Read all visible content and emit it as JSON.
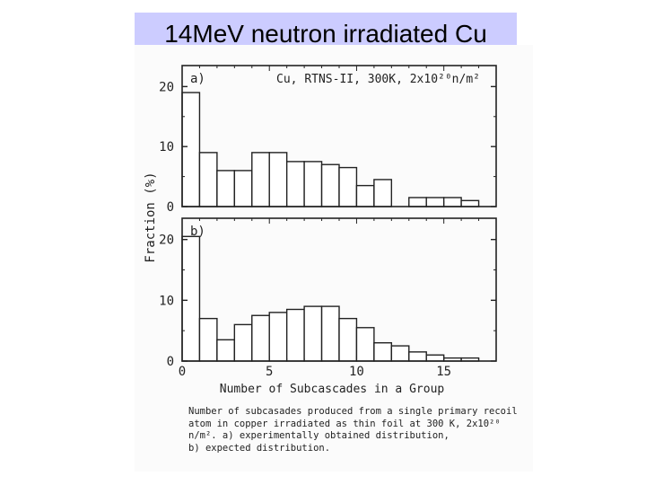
{
  "title": "14MeV neutron irradiated Cu",
  "chart_data": [
    {
      "type": "bar",
      "panel_label": "a)",
      "annotation": "Cu, RTNS-II, 300K, 2x10²⁰n/m²",
      "ylabel": "Fraction (%)",
      "xlabel": "Number of Subcascades in a Group",
      "yticks": [
        "0",
        "10",
        "20"
      ],
      "xticks": [
        "0",
        "5",
        "10",
        "15"
      ],
      "xlim": [
        0,
        18
      ],
      "ylim": [
        0,
        23.5
      ],
      "categories": [
        1,
        2,
        3,
        4,
        5,
        6,
        7,
        8,
        9,
        10,
        11,
        12,
        13,
        14,
        15,
        16,
        17
      ],
      "values": [
        19,
        9,
        6,
        6,
        9,
        9,
        7.5,
        7.5,
        7,
        6.5,
        3.5,
        4.5,
        0,
        1.5,
        1.5,
        1.5,
        1
      ]
    },
    {
      "type": "bar",
      "panel_label": "b)",
      "ylabel": "Fraction (%)",
      "xlabel": "Number of Subcascades in a Group",
      "yticks": [
        "0",
        "10",
        "20"
      ],
      "xticks": [
        "0",
        "5",
        "10",
        "15"
      ],
      "xlim": [
        0,
        18
      ],
      "ylim": [
        0,
        23.5
      ],
      "categories": [
        1,
        2,
        3,
        4,
        5,
        6,
        7,
        8,
        9,
        10,
        11,
        12,
        13,
        14,
        15,
        16,
        17
      ],
      "values": [
        20.5,
        7,
        3.5,
        6,
        7.5,
        8,
        8.5,
        9,
        9,
        7,
        5.5,
        3,
        2.5,
        1.5,
        1,
        0.5,
        0.5
      ]
    }
  ],
  "caption": {
    "lines": [
      "Number of subcasades produced from a single primary recoil",
      "atom in copper irradiated as thin foil at 300 K, 2x10²⁰",
      "n/m². a) experimentally obtained distribution,",
      "b) expected distribution."
    ]
  }
}
